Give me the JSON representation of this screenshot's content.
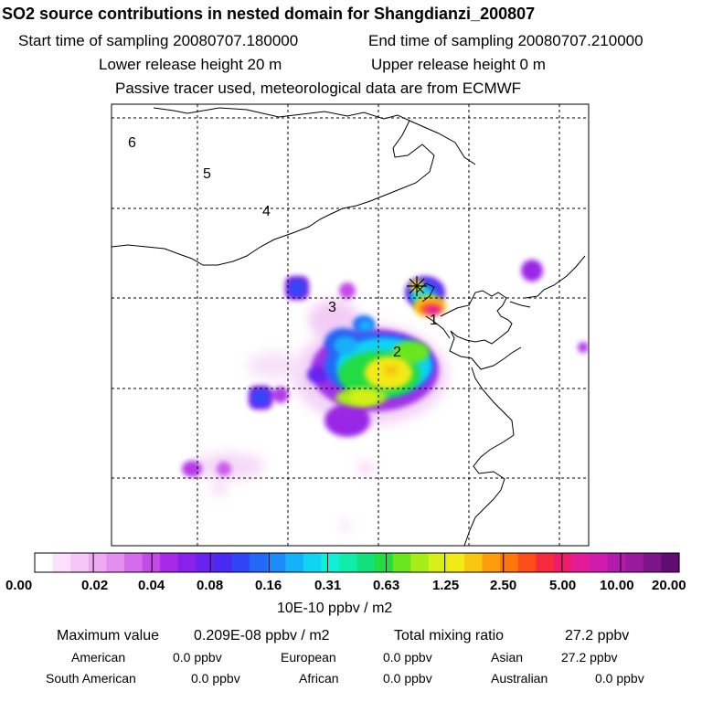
{
  "header": {
    "title": "SO2 source contributions in nested domain for Shangdianzi_200807",
    "start_time": "Start time of sampling 20080707.180000",
    "end_time": "End time of sampling 20080707.210000",
    "lower_release": "Lower release height   20 m",
    "upper_release": "Upper release height    0 m",
    "tracer_note": "Passive tracer used, meteorological data are from ECMWF"
  },
  "map": {
    "region_labels": [
      "1",
      "2",
      "3",
      "4",
      "5",
      "6"
    ],
    "station_marker": "Shangdianzi"
  },
  "colorbar": {
    "colors": [
      "#ffffff",
      "#fce0fc",
      "#f6c6f8",
      "#efaaf4",
      "#e48ef0",
      "#d56cec",
      "#c44aea",
      "#a82ae8",
      "#8a20ea",
      "#6a22f0",
      "#4a2af2",
      "#3046f6",
      "#2468f8",
      "#1c8cfa",
      "#14b0f8",
      "#10d4f4",
      "#10f0d8",
      "#10ecaa",
      "#12e07a",
      "#22dc44",
      "#6ae61e",
      "#a6ec1a",
      "#d6f018",
      "#f2ea14",
      "#f8c610",
      "#fc9e0c",
      "#fc760c",
      "#fc4c18",
      "#f62a3c",
      "#ee1a6c",
      "#e41a98",
      "#d01ab0",
      "#b41aae",
      "#9a1a9e",
      "#7e148a",
      "#600c70"
    ],
    "ticks": [
      "0.00",
      "0.02",
      "0.04",
      "0.08",
      "0.16",
      "0.31",
      "0.63",
      "1.25",
      "2.50",
      "5.00",
      "10.00",
      "20.00"
    ],
    "units": "10E-10 ppbv / m2"
  },
  "stats": {
    "max_label": "Maximum value",
    "max_value": "0.209E-08 ppbv / m2",
    "total_label": "Total mixing ratio",
    "total_value": "27.2 ppbv",
    "regions": [
      {
        "name": "American",
        "value": "0.0 ppbv"
      },
      {
        "name": "European",
        "value": "0.0 ppbv"
      },
      {
        "name": "Asian",
        "value": "27.2 ppbv"
      },
      {
        "name": "South American",
        "value": "0.0 ppbv"
      },
      {
        "name": "African",
        "value": "0.0 ppbv"
      },
      {
        "name": "Australian",
        "value": "0.0 ppbv"
      }
    ]
  }
}
